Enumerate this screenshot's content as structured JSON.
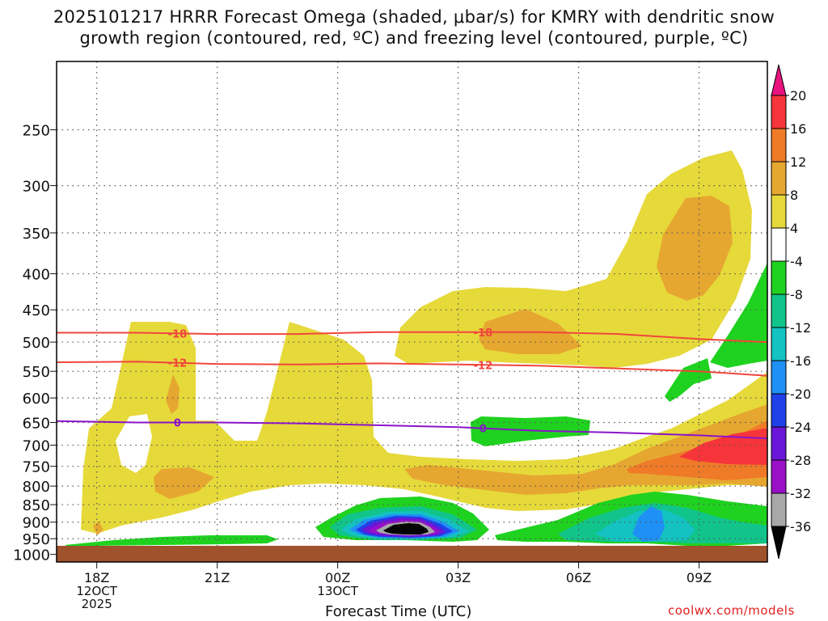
{
  "title": {
    "line1": "2025101217 HRRR Forecast Omega (shaded, μbar/s) for KMRY with dendritic snow",
    "line2": "growth region (contoured, red, ºC) and freezing level (contoured, purple, ºC)"
  },
  "credit": "coolwx.com/models",
  "chart_data": {
    "type": "heatmap",
    "title": "2025101217 HRRR Forecast Omega (shaded, μbar/s) for KMRY with dendritic snow growth region (contoured, red, ºC) and freezing level (contoured, purple, ºC)",
    "xlabel": "Forecast Time (UTC)",
    "ylabel": "",
    "x_ticks": [
      {
        "hour": 18,
        "lines": [
          "18Z",
          "12OCT",
          "2025"
        ]
      },
      {
        "hour": 21,
        "lines": [
          "21Z"
        ]
      },
      {
        "hour": 24,
        "lines": [
          "00Z",
          "13OCT"
        ]
      },
      {
        "hour": 27,
        "lines": [
          "03Z"
        ]
      },
      {
        "hour": 30,
        "lines": [
          "06Z"
        ]
      },
      {
        "hour": 33,
        "lines": [
          "09Z"
        ]
      }
    ],
    "xlim": [
      17,
      34.7
    ],
    "y_scale": "log (pressure, hPa, increasing downward)",
    "y_ticks": [
      250,
      300,
      350,
      400,
      450,
      500,
      550,
      600,
      650,
      700,
      750,
      800,
      850,
      900,
      950,
      1000
    ],
    "ylim": [
      200,
      1025
    ],
    "grid": "dotted",
    "colorbar": {
      "labels": [
        "20",
        "16",
        "12",
        "8",
        "4",
        "-4",
        "-8",
        "-12",
        "-16",
        "-20",
        "-24",
        "-28",
        "-32",
        "-36"
      ],
      "colors": [
        "#e8137f",
        "#f5353a",
        "#ef7a28",
        "#e6a730",
        "#e6d93a",
        "#ffffff",
        "#1fd21f",
        "#11c48a",
        "#14c2c2",
        "#1f90f5",
        "#2040e8",
        "#6a16d8",
        "#9a10c8",
        "#a8a8a8",
        "#050505"
      ]
    },
    "contours": [
      {
        "name": "-18",
        "color": "#f0463c",
        "points": [
          [
            17,
            485
          ],
          [
            19,
            485
          ],
          [
            21,
            487
          ],
          [
            23,
            487
          ],
          [
            25,
            484
          ],
          [
            27,
            484
          ],
          [
            29,
            484
          ],
          [
            31,
            487
          ],
          [
            33,
            495
          ],
          [
            34.7,
            500
          ]
        ]
      },
      {
        "name": "-12",
        "color": "#f0463c",
        "points": [
          [
            17,
            534
          ],
          [
            19,
            533
          ],
          [
            21,
            537
          ],
          [
            23,
            538
          ],
          [
            25,
            536
          ],
          [
            27,
            538
          ],
          [
            29,
            540
          ],
          [
            31,
            545
          ],
          [
            33,
            550
          ],
          [
            34.7,
            558
          ]
        ]
      },
      {
        "name": "0",
        "color": "#8a14c8",
        "points": [
          [
            17,
            647
          ],
          [
            19,
            650
          ],
          [
            21,
            650
          ],
          [
            23,
            652
          ],
          [
            25,
            656
          ],
          [
            27,
            660
          ],
          [
            29,
            668
          ],
          [
            31,
            672
          ],
          [
            33,
            678
          ],
          [
            34.7,
            685
          ]
        ]
      }
    ],
    "shaded_regions": [
      {
        "level": "4 to 8",
        "color": "#e6d93a"
      },
      {
        "level": "8 to 12",
        "color": "#e6a730"
      },
      {
        "level": "16 to 20",
        "color": "#f5353a"
      },
      {
        "level": "12 to 16",
        "color": "#ef7a28"
      },
      {
        "level": "-4 to -8",
        "color": "#1fd21f"
      },
      {
        "level": "-8 to -12",
        "color": "#11c48a"
      },
      {
        "level": "-12 to -16",
        "color": "#14c2c2"
      },
      {
        "level": "-16 to -20",
        "color": "#1f90f5"
      },
      {
        "level": "-20 to -24",
        "color": "#2040e8"
      },
      {
        "level": "-24 to -28",
        "color": "#6a16d8"
      },
      {
        "level": "-28 to -32",
        "color": "#9a10c8"
      },
      {
        "level": "-32 to -36",
        "color": "#a8a8a8"
      },
      {
        "level": "below -36",
        "color": "#050505"
      }
    ],
    "ground_color": "#a0522d"
  }
}
